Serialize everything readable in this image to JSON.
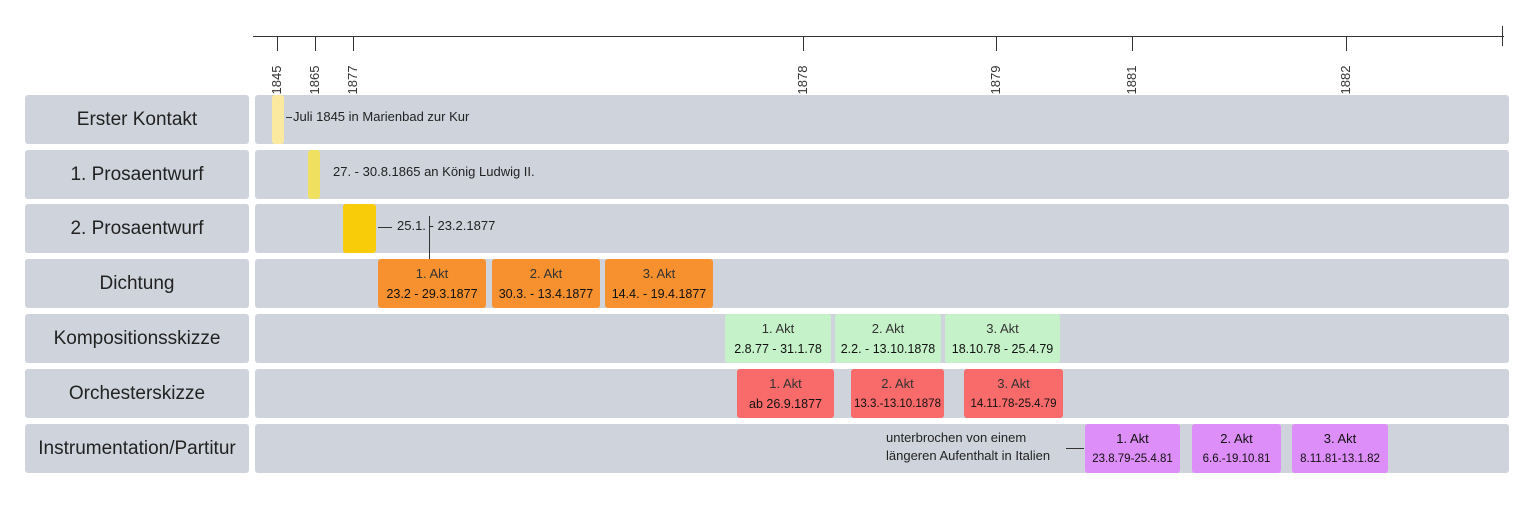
{
  "axis": {
    "ticks": [
      "1845",
      "1865",
      "1877",
      "1878",
      "1879",
      "1881",
      "1882"
    ]
  },
  "rows": [
    {
      "label": "Erster Kontakt"
    },
    {
      "label": "1. Prosaentwurf"
    },
    {
      "label": "2. Prosaentwurf"
    },
    {
      "label": "Dichtung"
    },
    {
      "label": "Kompositionsskizze"
    },
    {
      "label": "Orchesterskizze"
    },
    {
      "label": "Instrumentation/Partitur"
    }
  ],
  "notes": {
    "erster_kontakt": "Juli 1845 in Marienbad zur Kur",
    "prosa1": "27. - 30.8.1865 an König Ludwig II.",
    "prosa2": "25.1. - 23.2.1877",
    "italien_line1": "unterbrochen von einem",
    "italien_line2": "längeren Aufenthalt in Italien"
  },
  "dichtung": [
    {
      "act": "1. Akt",
      "dates": "23.2 - 29.3.1877"
    },
    {
      "act": "2. Akt",
      "dates": "30.3. - 13.4.1877"
    },
    {
      "act": "3. Akt",
      "dates": "14.4. - 19.4.1877"
    }
  ],
  "komposition": [
    {
      "act": "1. Akt",
      "dates": "2.8.77 - 31.1.78"
    },
    {
      "act": "2. Akt",
      "dates": "2.2. - 13.10.1878"
    },
    {
      "act": "3. Akt",
      "dates": "18.10.78 - 25.4.79"
    }
  ],
  "orchester": [
    {
      "act": "1. Akt",
      "dates": "ab 26.9.1877"
    },
    {
      "act": "2. Akt",
      "dates": "13.3.-13.10.1878"
    },
    {
      "act": "3. Akt",
      "dates": "14.11.78-25.4.79"
    }
  ],
  "instrumentation": [
    {
      "act": "1. Akt",
      "dates": "23.8.79-25.4.81"
    },
    {
      "act": "2. Akt",
      "dates": "6.6.-19.10.81"
    },
    {
      "act": "3. Akt",
      "dates": "8.11.81-13.1.82"
    }
  ],
  "colors": {
    "track": "#cfd4dc",
    "erster_kontakt": "#fbe9a0",
    "prosa1": "#f0e060",
    "prosa2": "#f9cc0a",
    "dichtung": "#f79130",
    "komposition": "#c5f2c8",
    "orchester": "#f96a6a",
    "instrumentation": "#dd8ef8"
  }
}
